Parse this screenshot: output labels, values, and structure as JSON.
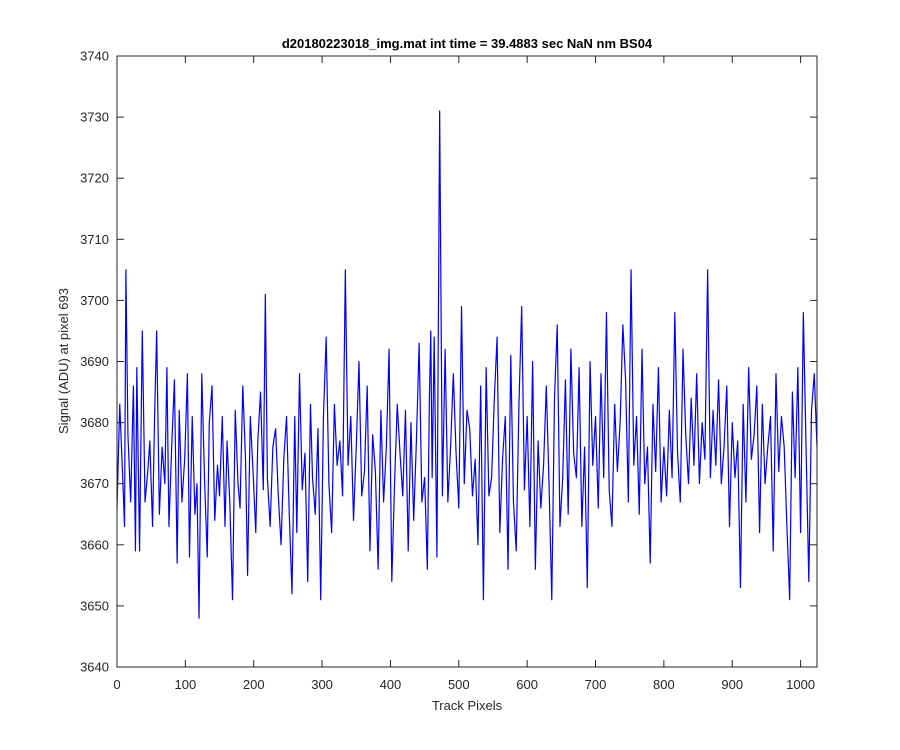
{
  "chart_data": {
    "type": "line",
    "title": "d20180223018_img.mat int time = 39.4883 sec  NaN nm BS04",
    "xlabel": "Track Pixels",
    "ylabel": "Signal (ADU) at pixel 693",
    "xlim": [
      0,
      1024
    ],
    "ylim": [
      3640,
      3740
    ],
    "xticks": [
      0,
      100,
      200,
      300,
      400,
      500,
      600,
      700,
      800,
      900,
      1000
    ],
    "yticks": [
      3640,
      3650,
      3660,
      3670,
      3680,
      3690,
      3700,
      3710,
      3720,
      3730,
      3740
    ],
    "grid": false,
    "legend": "none",
    "series": [
      {
        "color": "#0000ff",
        "x": [
          0,
          4,
          8,
          11,
          13,
          16,
          20,
          24,
          27,
          29,
          33,
          37,
          41,
          45,
          48,
          52,
          55,
          58,
          62,
          66,
          70,
          73,
          76,
          80,
          84,
          88,
          91,
          95,
          99,
          103,
          106,
          110,
          114,
          117,
          120,
          124,
          128,
          132,
          135,
          139,
          143,
          147,
          150,
          154,
          158,
          161,
          165,
          169,
          173,
          177,
          180,
          184,
          188,
          191,
          195,
          199,
          203,
          206,
          210,
          214,
          217,
          220,
          224,
          228,
          232,
          236,
          240,
          244,
          248,
          252,
          256,
          260,
          263,
          267,
          271,
          275,
          279,
          283,
          286,
          290,
          294,
          298,
          302,
          306,
          310,
          314,
          318,
          322,
          326,
          330,
          334,
          338,
          342,
          346,
          350,
          354,
          358,
          362,
          366,
          370,
          374,
          378,
          382,
          386,
          390,
          394,
          398,
          402,
          406,
          410,
          414,
          418,
          422,
          426,
          430,
          434,
          438,
          442,
          446,
          450,
          454,
          457,
          459,
          461,
          464,
          468,
          472,
          476,
          480,
          484,
          488,
          492,
          496,
          500,
          504,
          508,
          512,
          516,
          520,
          524,
          528,
          532,
          536,
          540,
          544,
          548,
          552,
          556,
          560,
          564,
          568,
          572,
          576,
          580,
          584,
          588,
          592,
          596,
          600,
          604,
          608,
          612,
          616,
          620,
          624,
          628,
          632,
          636,
          640,
          644,
          648,
          652,
          656,
          660,
          664,
          668,
          672,
          676,
          680,
          684,
          688,
          692,
          696,
          700,
          704,
          708,
          712,
          716,
          720,
          724,
          728,
          732,
          736,
          740,
          744,
          748,
          752,
          756,
          760,
          764,
          768,
          772,
          776,
          780,
          784,
          788,
          792,
          796,
          800,
          804,
          808,
          812,
          816,
          820,
          824,
          828,
          832,
          836,
          840,
          844,
          848,
          852,
          856,
          860,
          864,
          868,
          872,
          876,
          880,
          884,
          888,
          892,
          896,
          900,
          904,
          908,
          912,
          916,
          920,
          924,
          928,
          932,
          936,
          940,
          944,
          948,
          952,
          956,
          960,
          964,
          968,
          972,
          976,
          980,
          984,
          988,
          992,
          996,
          1000,
          1004,
          1008,
          1012,
          1016,
          1020,
          1024
        ],
        "y": [
          3666,
          3683,
          3672,
          3663,
          3705,
          3678,
          3667,
          3686,
          3659,
          3689,
          3659,
          3695,
          3667,
          3672,
          3677,
          3663,
          3681,
          3695,
          3665,
          3676,
          3670,
          3689,
          3663,
          3676,
          3687,
          3657,
          3682,
          3667,
          3674,
          3688,
          3658,
          3681,
          3665,
          3670,
          3648,
          3688,
          3671,
          3658,
          3680,
          3686,
          3664,
          3673,
          3668,
          3681,
          3663,
          3677,
          3667,
          3651,
          3682,
          3670,
          3666,
          3686,
          3674,
          3655,
          3681,
          3672,
          3662,
          3677,
          3685,
          3669,
          3701,
          3671,
          3663,
          3676,
          3679,
          3668,
          3660,
          3674,
          3681,
          3665,
          3652,
          3681,
          3662,
          3688,
          3669,
          3675,
          3654,
          3683,
          3671,
          3665,
          3679,
          3651,
          3681,
          3694,
          3670,
          3662,
          3683,
          3673,
          3677,
          3668,
          3705,
          3673,
          3681,
          3664,
          3676,
          3690,
          3668,
          3672,
          3686,
          3659,
          3678,
          3672,
          3656,
          3682,
          3667,
          3676,
          3692,
          3654,
          3670,
          3683,
          3675,
          3668,
          3682,
          3659,
          3680,
          3664,
          3677,
          3693,
          3667,
          3671,
          3656,
          3684,
          3695,
          3671,
          3694,
          3658,
          3731,
          3668,
          3692,
          3667,
          3676,
          3688,
          3675,
          3666,
          3699,
          3670,
          3682,
          3679,
          3668,
          3674,
          3660,
          3686,
          3651,
          3689,
          3668,
          3671,
          3684,
          3694,
          3662,
          3674,
          3681,
          3656,
          3691,
          3667,
          3659,
          3683,
          3699,
          3669,
          3681,
          3663,
          3690,
          3656,
          3677,
          3666,
          3673,
          3686,
          3670,
          3651,
          3684,
          3696,
          3663,
          3671,
          3687,
          3665,
          3692,
          3675,
          3671,
          3689,
          3663,
          3676,
          3653,
          3690,
          3673,
          3681,
          3666,
          3688,
          3671,
          3698,
          3669,
          3663,
          3683,
          3672,
          3680,
          3696,
          3687,
          3667,
          3705,
          3673,
          3681,
          3665,
          3692,
          3670,
          3676,
          3657,
          3683,
          3672,
          3689,
          3667,
          3676,
          3668,
          3682,
          3671,
          3698,
          3675,
          3667,
          3692,
          3678,
          3670,
          3684,
          3673,
          3688,
          3670,
          3680,
          3674,
          3705,
          3671,
          3682,
          3673,
          3687,
          3670,
          3676,
          3686,
          3663,
          3680,
          3671,
          3677,
          3653,
          3683,
          3667,
          3689,
          3674,
          3678,
          3686,
          3662,
          3683,
          3670,
          3676,
          3681,
          3659,
          3688,
          3672,
          3681,
          3676,
          3663,
          3651,
          3685,
          3671,
          3689,
          3662,
          3698,
          3676,
          3654,
          3682,
          3688,
          3676
        ]
      }
    ]
  }
}
